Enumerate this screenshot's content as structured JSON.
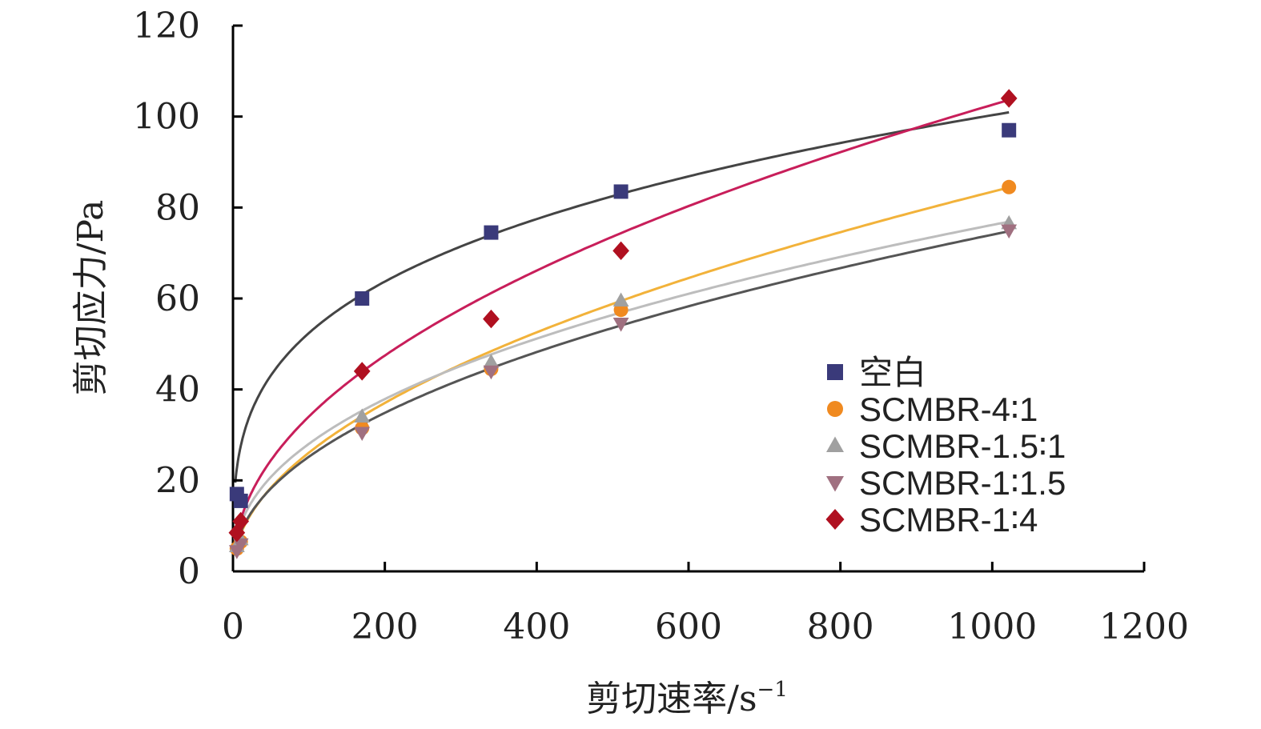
{
  "chart_data": {
    "type": "scatter",
    "xlabel": "剪切速率/s",
    "xlabel_sup": "−1",
    "ylabel": "剪切应力/Pa",
    "xlim": [
      0,
      1200
    ],
    "ylim": [
      0,
      120
    ],
    "xticks": [
      0,
      200,
      400,
      600,
      800,
      1000,
      1200
    ],
    "yticks": [
      0,
      20,
      40,
      60,
      80,
      100,
      120
    ],
    "grid": false,
    "legend_position": "right",
    "series": [
      {
        "name": "空白",
        "color": "#3a3a7a",
        "line_color": "#444444",
        "marker": "square",
        "x": [
          5.1,
          10.2,
          170,
          340,
          511,
          1022
        ],
        "y": [
          17,
          15.5,
          60,
          74.5,
          83.5,
          97
        ],
        "fit": {
          "a": 14.3,
          "b": 0.282
        }
      },
      {
        "name": "SCMBR-4∶1",
        "color": "#f08a20",
        "line_color": "#f2b23a",
        "marker": "circle",
        "x": [
          5.1,
          10.2,
          170,
          340,
          511,
          1022
        ],
        "y": [
          5,
          6.5,
          31.5,
          44.5,
          57.5,
          84.5
        ],
        "fit": {
          "a": 2.55,
          "b": 0.505
        }
      },
      {
        "name": "SCMBR-1.5∶1",
        "color": "#a0a0a0",
        "line_color": "#bdbdbd",
        "marker": "triangle",
        "x": [
          5.1,
          10.2,
          170,
          340,
          511,
          1022
        ],
        "y": [
          5.5,
          7,
          34,
          46,
          59.5,
          76.5
        ],
        "fit": {
          "a": 3.8,
          "b": 0.434
        }
      },
      {
        "name": "SCMBR-1∶1.5",
        "color": "#a07080",
        "line_color": "#555555",
        "marker": "triangle-down",
        "x": [
          5.1,
          10.2,
          170,
          340,
          511,
          1022
        ],
        "y": [
          4.5,
          6,
          30.5,
          44,
          54.5,
          75
        ],
        "fit": {
          "a": 2.92,
          "b": 0.468
        }
      },
      {
        "name": "SCMBR-1∶4",
        "color": "#b01020",
        "line_color": "#c81e5a",
        "marker": "diamond",
        "x": [
          5.1,
          10.2,
          170,
          340,
          511,
          1022
        ],
        "y": [
          8.5,
          11,
          44,
          55.5,
          70.5,
          104
        ],
        "fit": {
          "a": 3.75,
          "b": 0.479
        }
      }
    ]
  }
}
